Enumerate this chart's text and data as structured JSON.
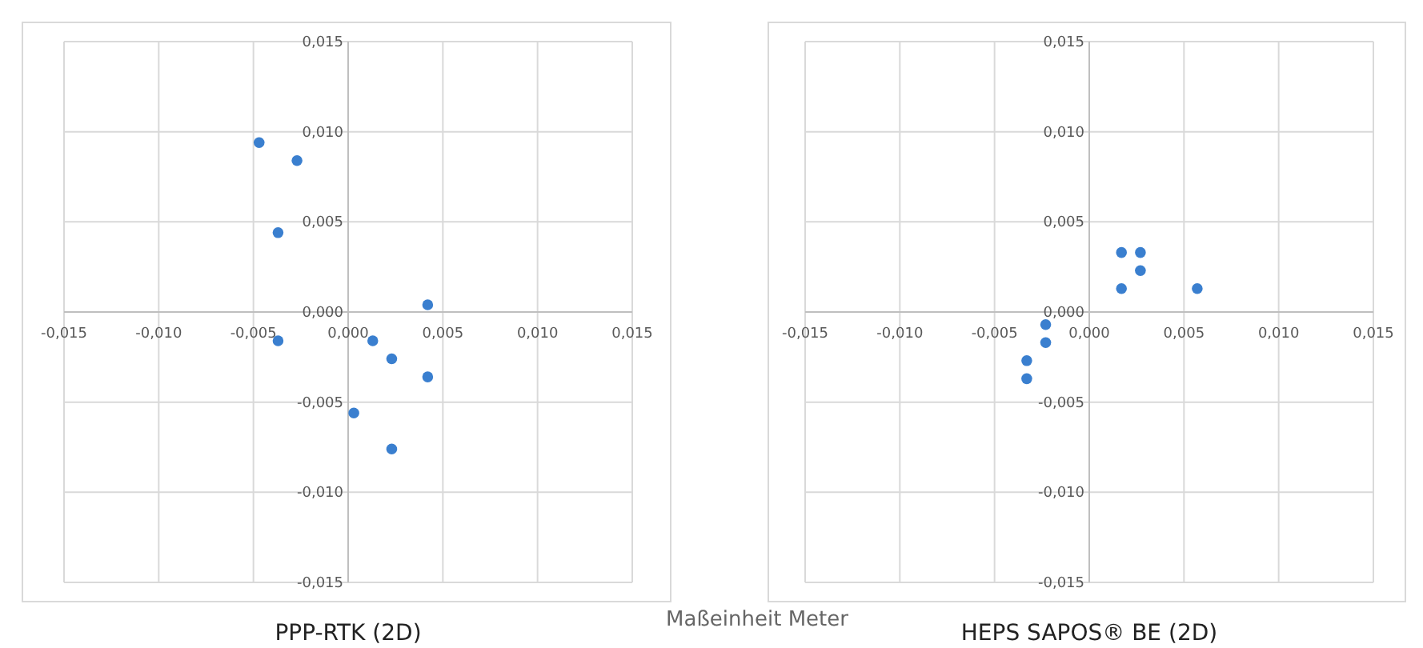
{
  "chart_data": [
    {
      "type": "scatter",
      "title": "PPP-RTK (2D)",
      "annotations": [
        "Maßeinheit Meter"
      ],
      "marker": "circle",
      "grid": true,
      "xlim": [
        -0.015,
        0.015
      ],
      "ylim": [
        -0.015,
        0.015
      ],
      "xticks": [
        {
          "value": -0.015,
          "label": "-0,015"
        },
        {
          "value": -0.01,
          "label": "-0,010"
        },
        {
          "value": -0.005,
          "label": "-0,005"
        },
        {
          "value": 0,
          "label": "0,000"
        },
        {
          "value": 0.005,
          "label": "0,005"
        },
        {
          "value": 0.01,
          "label": "0,010"
        },
        {
          "value": 0.015,
          "label": "0,015"
        }
      ],
      "yticks": [
        {
          "value": -0.015,
          "label": "-0,015"
        },
        {
          "value": -0.01,
          "label": "-0,010"
        },
        {
          "value": -0.005,
          "label": "-0,005"
        },
        {
          "value": 0,
          "label": "0,000"
        },
        {
          "value": 0.005,
          "label": "0,005"
        },
        {
          "value": 0.01,
          "label": "0,010"
        },
        {
          "value": 0.015,
          "label": "0,015"
        }
      ],
      "series": [
        {
          "color": "#3a7fcf",
          "x": [
            -0.0047,
            -0.0027,
            -0.0037,
            0.0042,
            -0.0037,
            0.0013,
            0.0023,
            0.0042,
            0.0003,
            0.0023
          ],
          "values": [
            0.0094,
            0.0084,
            0.0044,
            0.0004,
            -0.0016,
            -0.0016,
            -0.0026,
            -0.0036,
            -0.0056,
            -0.0076
          ]
        }
      ]
    },
    {
      "type": "scatter",
      "title": "HEPS SAPOS® BE (2D)",
      "marker": "circle",
      "grid": true,
      "xlim": [
        -0.015,
        0.015
      ],
      "ylim": [
        -0.015,
        0.015
      ],
      "xticks": [
        {
          "value": -0.015,
          "label": "-0,015"
        },
        {
          "value": -0.01,
          "label": "-0,010"
        },
        {
          "value": -0.005,
          "label": "-0,005"
        },
        {
          "value": 0,
          "label": "0,000"
        },
        {
          "value": 0.005,
          "label": "0,005"
        },
        {
          "value": 0.01,
          "label": "0,010"
        },
        {
          "value": 0.015,
          "label": "0,015"
        }
      ],
      "yticks": [
        {
          "value": -0.015,
          "label": "-0,015"
        },
        {
          "value": -0.01,
          "label": "-0,010"
        },
        {
          "value": -0.005,
          "label": "-0,005"
        },
        {
          "value": 0,
          "label": "0,000"
        },
        {
          "value": 0.005,
          "label": "0,005"
        },
        {
          "value": 0.01,
          "label": "0,010"
        },
        {
          "value": 0.015,
          "label": "0,015"
        }
      ],
      "series": [
        {
          "color": "#3a7fcf",
          "x": [
            0.0017,
            0.0027,
            0.0027,
            0.0017,
            0.0057,
            -0.0023,
            -0.0023,
            -0.0033,
            -0.0033
          ],
          "values": [
            0.0033,
            0.0033,
            0.0023,
            0.0013,
            0.0013,
            -0.0007,
            -0.0017,
            -0.0027,
            -0.0037
          ]
        }
      ]
    }
  ]
}
